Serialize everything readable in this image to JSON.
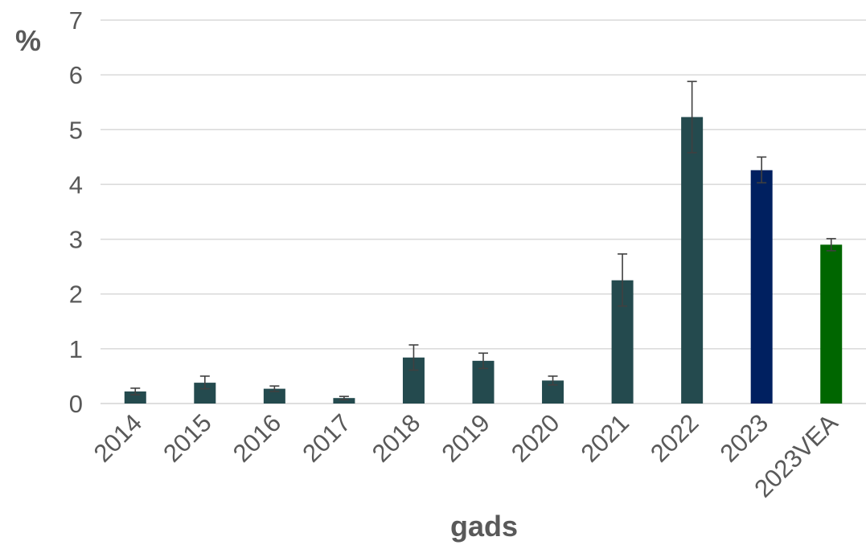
{
  "chart_data": {
    "type": "bar",
    "title": "",
    "xlabel": "gads",
    "ylabel": "%",
    "ylim": [
      0,
      7
    ],
    "yticks": [
      0,
      1,
      2,
      3,
      4,
      5,
      6,
      7
    ],
    "grid": true,
    "categories": [
      "2014",
      "2015",
      "2016",
      "2017",
      "2018",
      "2019",
      "2020",
      "2021",
      "2022",
      "2023",
      "2023VEA"
    ],
    "values": [
      0.22,
      0.38,
      0.27,
      0.1,
      0.84,
      0.78,
      0.42,
      2.25,
      5.23,
      4.26,
      2.9
    ],
    "error_low": [
      0.16,
      0.27,
      0.22,
      0.07,
      0.61,
      0.64,
      0.34,
      1.78,
      4.58,
      4.03,
      2.79
    ],
    "error_high": [
      0.28,
      0.5,
      0.32,
      0.13,
      1.07,
      0.92,
      0.5,
      2.73,
      5.88,
      4.5,
      3.01
    ],
    "colors": [
      "#244a4e",
      "#244a4e",
      "#244a4e",
      "#244a4e",
      "#244a4e",
      "#244a4e",
      "#244a4e",
      "#244a4e",
      "#244a4e",
      "#002060",
      "#006600"
    ]
  }
}
